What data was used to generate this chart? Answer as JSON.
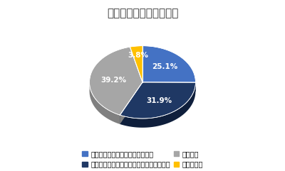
{
  "title": "オンライン結婚式　認知",
  "slices": [
    25.1,
    31.9,
    39.2,
    3.8
  ],
  "labels": [
    "25.1%",
    "31.9%",
    "39.2%",
    "3.8%"
  ],
  "colors": [
    "#4472C4",
    "#1F3864",
    "#A6A6A6",
    "#FFC000"
  ],
  "depth_colors": [
    "#2E5594",
    "#0F1F3C",
    "#808080",
    "#CC9900"
  ],
  "legend_labels": [
    "知っていて、具体的に説明できる",
    "なんとなく知っているが、説明はできない",
    "知らない",
    "わからない"
  ],
  "legend_colors": [
    "#4472C4",
    "#1F3864",
    "#A6A6A6",
    "#FFC000"
  ],
  "startangle": 90,
  "title_fontsize": 11,
  "label_fontsize": 7.5,
  "legend_fontsize": 7,
  "background_color": "#FFFFFF"
}
